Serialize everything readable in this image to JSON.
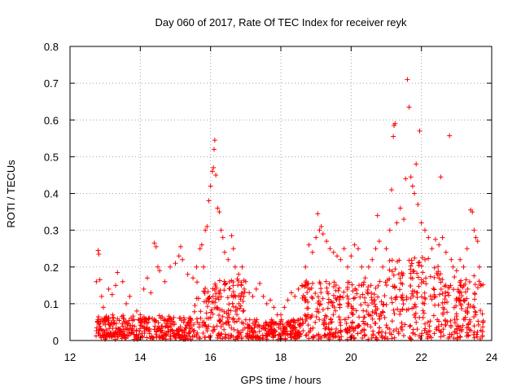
{
  "chart_data": {
    "type": "scatter",
    "title": "Day 060 of 2017, Rate Of TEC Index for receiver reyk",
    "xlabel": "GPS time / hours",
    "ylabel": "ROTI / TECUs",
    "xlim": [
      12,
      24
    ],
    "ylim": [
      0,
      0.8
    ],
    "xticks": [
      12,
      14,
      16,
      18,
      20,
      22,
      24
    ],
    "yticks": [
      0,
      0.1,
      0.2,
      0.3,
      0.4,
      0.5,
      0.6,
      0.7,
      0.8
    ],
    "xtick_labels": [
      "12",
      "14",
      "16",
      "18",
      "20",
      "22",
      "24"
    ],
    "ytick_labels": [
      "0",
      "0.1",
      "0.2",
      "0.3",
      "0.4",
      "0.5",
      "0.6",
      "0.7",
      "0.8"
    ],
    "grid": true,
    "marker": "+",
    "marker_color": "#ff0000",
    "series": [
      {
        "name": "reyk",
        "points": [
          [
            12.8,
            0.245
          ],
          [
            12.82,
            0.235
          ],
          [
            12.75,
            0.16
          ],
          [
            12.85,
            0.165
          ],
          [
            12.9,
            0.12
          ],
          [
            12.95,
            0.09
          ],
          [
            13.1,
            0.14
          ],
          [
            13.2,
            0.125
          ],
          [
            13.3,
            0.15
          ],
          [
            13.35,
            0.185
          ],
          [
            13.5,
            0.16
          ],
          [
            13.6,
            0.1
          ],
          [
            13.7,
            0.12
          ],
          [
            13.9,
            0.08
          ],
          [
            14.0,
            0.07
          ],
          [
            14.1,
            0.14
          ],
          [
            14.2,
            0.17
          ],
          [
            14.3,
            0.13
          ],
          [
            14.4,
            0.265
          ],
          [
            14.45,
            0.255
          ],
          [
            14.5,
            0.2
          ],
          [
            14.55,
            0.19
          ],
          [
            14.7,
            0.16
          ],
          [
            14.85,
            0.2
          ],
          [
            15.0,
            0.21
          ],
          [
            15.1,
            0.23
          ],
          [
            15.15,
            0.255
          ],
          [
            15.2,
            0.22
          ],
          [
            15.35,
            0.18
          ],
          [
            15.5,
            0.17
          ],
          [
            15.6,
            0.2
          ],
          [
            15.7,
            0.25
          ],
          [
            15.75,
            0.26
          ],
          [
            15.8,
            0.2
          ],
          [
            15.85,
            0.3
          ],
          [
            15.9,
            0.31
          ],
          [
            15.95,
            0.38
          ],
          [
            16.0,
            0.42
          ],
          [
            16.05,
            0.46
          ],
          [
            16.08,
            0.47
          ],
          [
            16.1,
            0.52
          ],
          [
            16.12,
            0.545
          ],
          [
            16.15,
            0.45
          ],
          [
            16.2,
            0.36
          ],
          [
            16.25,
            0.35
          ],
          [
            16.3,
            0.3
          ],
          [
            16.35,
            0.28
          ],
          [
            16.4,
            0.24
          ],
          [
            16.5,
            0.22
          ],
          [
            16.6,
            0.285
          ],
          [
            16.65,
            0.25
          ],
          [
            16.7,
            0.2
          ],
          [
            16.8,
            0.18
          ],
          [
            16.9,
            0.2
          ],
          [
            17.0,
            0.16
          ],
          [
            17.1,
            0.13
          ],
          [
            17.2,
            0.12
          ],
          [
            17.3,
            0.14
          ],
          [
            17.4,
            0.155
          ],
          [
            17.5,
            0.12
          ],
          [
            17.6,
            0.1
          ],
          [
            17.7,
            0.11
          ],
          [
            17.8,
            0.09
          ],
          [
            17.9,
            0.07
          ],
          [
            18.0,
            0.07
          ],
          [
            18.1,
            0.09
          ],
          [
            18.2,
            0.11
          ],
          [
            18.3,
            0.13
          ],
          [
            18.4,
            0.12
          ],
          [
            18.5,
            0.14
          ],
          [
            18.6,
            0.15
          ],
          [
            18.7,
            0.2
          ],
          [
            18.8,
            0.26
          ],
          [
            18.9,
            0.24
          ],
          [
            19.0,
            0.28
          ],
          [
            19.05,
            0.345
          ],
          [
            19.1,
            0.3
          ],
          [
            19.15,
            0.31
          ],
          [
            19.2,
            0.29
          ],
          [
            19.3,
            0.27
          ],
          [
            19.4,
            0.25
          ],
          [
            19.5,
            0.24
          ],
          [
            19.6,
            0.23
          ],
          [
            19.7,
            0.22
          ],
          [
            19.8,
            0.25
          ],
          [
            19.9,
            0.2
          ],
          [
            20.0,
            0.23
          ],
          [
            20.1,
            0.26
          ],
          [
            20.2,
            0.25
          ],
          [
            20.3,
            0.2
          ],
          [
            20.4,
            0.17
          ],
          [
            20.5,
            0.2
          ],
          [
            20.6,
            0.22
          ],
          [
            20.7,
            0.25
          ],
          [
            20.75,
            0.34
          ],
          [
            20.8,
            0.27
          ],
          [
            20.9,
            0.2
          ],
          [
            21.0,
            0.25
          ],
          [
            21.1,
            0.3
          ],
          [
            21.15,
            0.41
          ],
          [
            21.2,
            0.555
          ],
          [
            21.22,
            0.585
          ],
          [
            21.25,
            0.59
          ],
          [
            21.3,
            0.32
          ],
          [
            21.4,
            0.36
          ],
          [
            21.5,
            0.33
          ],
          [
            21.55,
            0.44
          ],
          [
            21.6,
            0.71
          ],
          [
            21.65,
            0.635
          ],
          [
            21.7,
            0.445
          ],
          [
            21.75,
            0.42
          ],
          [
            21.8,
            0.4
          ],
          [
            21.85,
            0.48
          ],
          [
            21.9,
            0.37
          ],
          [
            21.95,
            0.57
          ],
          [
            22.0,
            0.32
          ],
          [
            22.1,
            0.3
          ],
          [
            22.2,
            0.28
          ],
          [
            22.3,
            0.25
          ],
          [
            22.4,
            0.275
          ],
          [
            22.5,
            0.26
          ],
          [
            22.55,
            0.445
          ],
          [
            22.6,
            0.28
          ],
          [
            22.7,
            0.24
          ],
          [
            22.8,
            0.557
          ],
          [
            22.85,
            0.22
          ],
          [
            22.9,
            0.2
          ],
          [
            23.0,
            0.19
          ],
          [
            23.1,
            0.22
          ],
          [
            23.2,
            0.2
          ],
          [
            23.3,
            0.25
          ],
          [
            23.4,
            0.355
          ],
          [
            23.45,
            0.35
          ],
          [
            23.5,
            0.3
          ],
          [
            23.55,
            0.28
          ],
          [
            23.6,
            0.27
          ],
          [
            23.65,
            0.2
          ],
          [
            23.7,
            0.15
          ],
          [
            23.75,
            0.05
          ]
        ]
      }
    ]
  }
}
